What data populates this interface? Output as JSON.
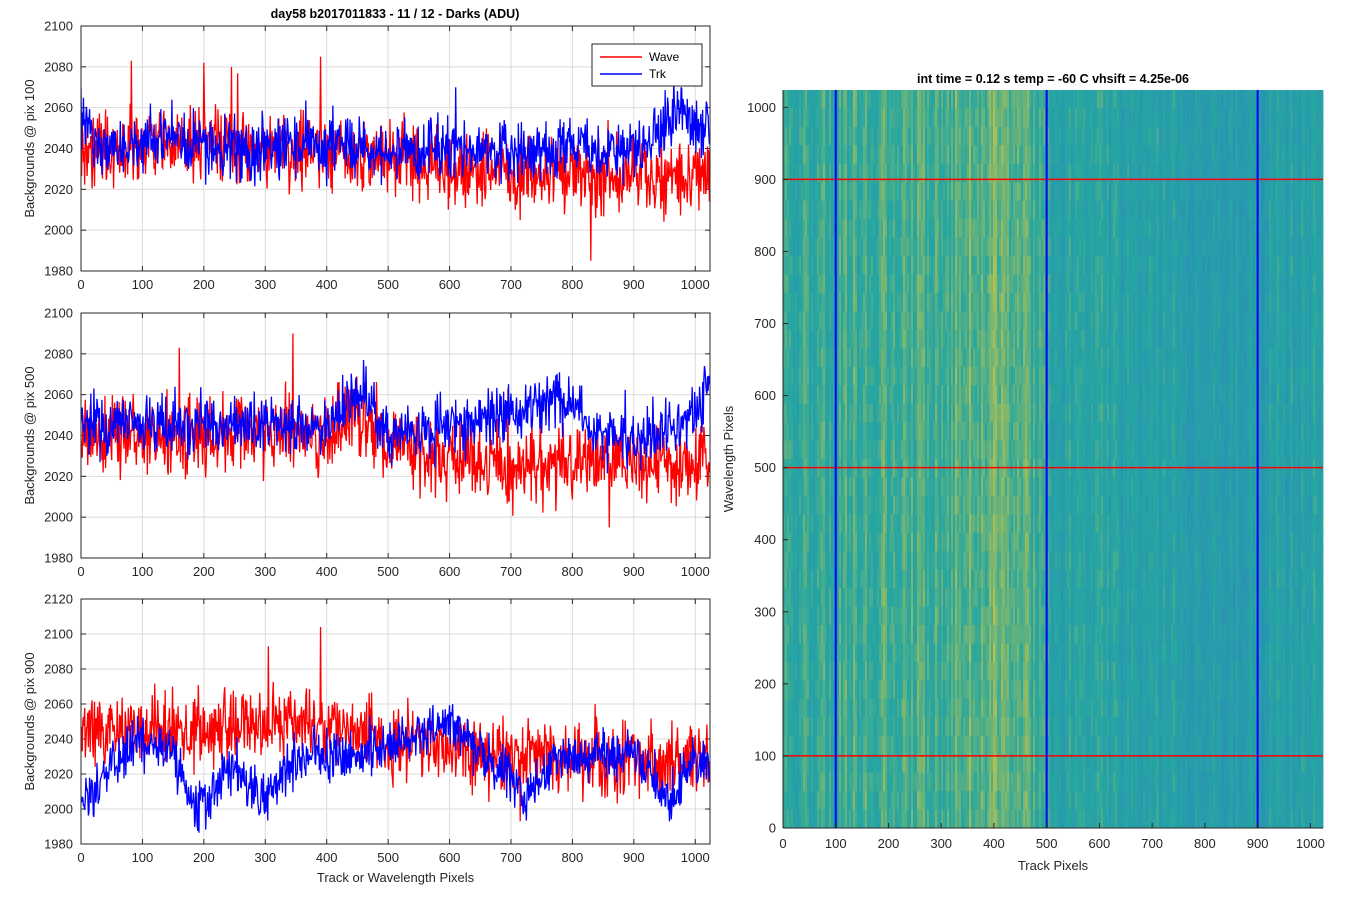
{
  "figure_title": "day58 b2017011833 - 11 / 12 - Darks (ADU)",
  "colors": {
    "wave": "#ff0000",
    "trk": "#0000ff",
    "heat_low": "#2a8fb8",
    "heat_mid": "#26a7a0",
    "heat_high": "#bfc24a"
  },
  "chart_data": [
    {
      "type": "line",
      "title": "",
      "xlabel": "",
      "ylabel": "Backgrounds @ pix 100",
      "xlim": [
        0,
        1024
      ],
      "ylim": [
        1980,
        2100
      ],
      "xticks": [
        "0",
        "100",
        "200",
        "300",
        "400",
        "500",
        "600",
        "700",
        "800",
        "900",
        "1000"
      ],
      "yticks": [
        "1980",
        "2000",
        "2020",
        "2040",
        "2060",
        "2080",
        "2100"
      ],
      "grid": true,
      "legend": {
        "location": "top-right",
        "entries": [
          "Wave",
          "Trk"
        ]
      },
      "series": [
        {
          "name": "Wave",
          "color": "#ff0000",
          "mean_profile": [
            [
              0,
              2040
            ],
            [
              100,
              2040
            ],
            [
              200,
              2042
            ],
            [
              300,
              2040
            ],
            [
              400,
              2040
            ],
            [
              500,
              2035
            ],
            [
              600,
              2030
            ],
            [
              700,
              2027
            ],
            [
              800,
              2027
            ],
            [
              900,
              2027
            ],
            [
              1024,
              2027
            ]
          ],
          "noise": 9,
          "peaks": [
            [
              82,
              2083
            ],
            [
              200,
              2082
            ],
            [
              245,
              2080
            ],
            [
              390,
              2085
            ],
            [
              830,
              1985
            ]
          ]
        },
        {
          "name": "Trk",
          "color": "#0000ff",
          "mean_profile": [
            [
              0,
              2055
            ],
            [
              30,
              2040
            ],
            [
              100,
              2042
            ],
            [
              150,
              2048
            ],
            [
              200,
              2040
            ],
            [
              300,
              2040
            ],
            [
              450,
              2042
            ],
            [
              500,
              2035
            ],
            [
              600,
              2042
            ],
            [
              700,
              2038
            ],
            [
              800,
              2040
            ],
            [
              900,
              2038
            ],
            [
              950,
              2050
            ],
            [
              980,
              2060
            ],
            [
              1000,
              2045
            ],
            [
              1024,
              2050
            ]
          ],
          "noise": 7,
          "peaks": [
            [
              610,
              2070
            ],
            [
              965,
              2075
            ]
          ]
        }
      ]
    },
    {
      "type": "line",
      "title": "",
      "xlabel": "",
      "ylabel": "Backgrounds @ pix 500",
      "xlim": [
        0,
        1024
      ],
      "ylim": [
        1980,
        2100
      ],
      "xticks": [
        "0",
        "100",
        "200",
        "300",
        "400",
        "500",
        "600",
        "700",
        "800",
        "900",
        "1000"
      ],
      "yticks": [
        "1980",
        "2000",
        "2020",
        "2040",
        "2060",
        "2080",
        "2100"
      ],
      "grid": true,
      "series": [
        {
          "name": "Wave",
          "color": "#ff0000",
          "mean_profile": [
            [
              0,
              2040
            ],
            [
              100,
              2040
            ],
            [
              200,
              2040
            ],
            [
              300,
              2040
            ],
            [
              400,
              2040
            ],
            [
              450,
              2050
            ],
            [
              500,
              2035
            ],
            [
              600,
              2030
            ],
            [
              700,
              2025
            ],
            [
              800,
              2027
            ],
            [
              900,
              2025
            ],
            [
              1024,
              2027
            ]
          ],
          "noise": 9,
          "peaks": [
            [
              160,
              2083
            ],
            [
              345,
              2090
            ],
            [
              695,
              2063
            ],
            [
              860,
              1995
            ]
          ]
        },
        {
          "name": "Trk",
          "color": "#0000ff",
          "mean_profile": [
            [
              0,
              2045
            ],
            [
              100,
              2045
            ],
            [
              200,
              2045
            ],
            [
              300,
              2045
            ],
            [
              400,
              2045
            ],
            [
              460,
              2062
            ],
            [
              500,
              2040
            ],
            [
              600,
              2045
            ],
            [
              700,
              2050
            ],
            [
              780,
              2060
            ],
            [
              850,
              2040
            ],
            [
              900,
              2038
            ],
            [
              1000,
              2050
            ],
            [
              1024,
              2065
            ]
          ],
          "noise": 7,
          "peaks": [
            [
              460,
              2077
            ],
            [
              1015,
              2074
            ]
          ]
        }
      ]
    },
    {
      "type": "line",
      "title": "",
      "xlabel": "Track or Wavelength Pixels",
      "ylabel": "Backgrounds @ pix 900",
      "xlim": [
        0,
        1024
      ],
      "ylim": [
        1980,
        2120
      ],
      "xticks": [
        "0",
        "100",
        "200",
        "300",
        "400",
        "500",
        "600",
        "700",
        "800",
        "900",
        "1000"
      ],
      "yticks": [
        "1980",
        "2000",
        "2020",
        "2040",
        "2060",
        "2080",
        "2100",
        "2120"
      ],
      "grid": true,
      "series": [
        {
          "name": "Wave",
          "color": "#ff0000",
          "mean_profile": [
            [
              0,
              2045
            ],
            [
              100,
              2045
            ],
            [
              200,
              2045
            ],
            [
              300,
              2047
            ],
            [
              400,
              2048
            ],
            [
              500,
              2040
            ],
            [
              600,
              2035
            ],
            [
              700,
              2030
            ],
            [
              800,
              2028
            ],
            [
              900,
              2027
            ],
            [
              1024,
              2027
            ]
          ],
          "noise": 10,
          "peaks": [
            [
              305,
              2093
            ],
            [
              390,
              2104
            ],
            [
              715,
              1993
            ]
          ]
        },
        {
          "name": "Trk",
          "color": "#0000ff",
          "mean_profile": [
            [
              0,
              2005
            ],
            [
              20,
              2005
            ],
            [
              50,
              2030
            ],
            [
              100,
              2040
            ],
            [
              150,
              2030
            ],
            [
              185,
              1998
            ],
            [
              200,
              2005
            ],
            [
              250,
              2025
            ],
            [
              300,
              2005
            ],
            [
              350,
              2030
            ],
            [
              450,
              2030
            ],
            [
              600,
              2050
            ],
            [
              650,
              2030
            ],
            [
              700,
              2020
            ],
            [
              720,
              2005
            ],
            [
              780,
              2030
            ],
            [
              900,
              2030
            ],
            [
              960,
              2005
            ],
            [
              1000,
              2030
            ],
            [
              1024,
              2025
            ]
          ],
          "noise": 7,
          "peaks": [
            [
              605,
              2060
            ]
          ]
        }
      ]
    },
    {
      "type": "heatmap",
      "title": "int time = 0.12 s   temp = -60 C   vhsift = 4.25e-06",
      "xlabel": "Track Pixels",
      "ylabel": "Wavelength Pixels",
      "xlim": [
        0,
        1024
      ],
      "ylim": [
        0,
        1024
      ],
      "xticks": [
        "0",
        "100",
        "200",
        "300",
        "400",
        "500",
        "600",
        "700",
        "800",
        "900",
        "1000"
      ],
      "yticks": [
        "0",
        "100",
        "200",
        "300",
        "400",
        "500",
        "600",
        "700",
        "800",
        "900",
        "1000"
      ],
      "grid": false,
      "column_intensity_profile": [
        [
          0,
          0.45
        ],
        [
          100,
          0.55
        ],
        [
          200,
          0.6
        ],
        [
          300,
          0.62
        ],
        [
          400,
          0.72
        ],
        [
          470,
          0.6
        ],
        [
          500,
          0.4
        ],
        [
          700,
          0.35
        ],
        [
          800,
          0.3
        ],
        [
          900,
          0.28
        ],
        [
          1024,
          0.4
        ]
      ],
      "marker_lines": {
        "vertical_x": [
          100,
          500,
          900
        ],
        "vertical_color": "#0000ff",
        "horizontal_y": [
          100,
          500,
          900
        ],
        "horizontal_color": "#ff0000"
      }
    }
  ]
}
